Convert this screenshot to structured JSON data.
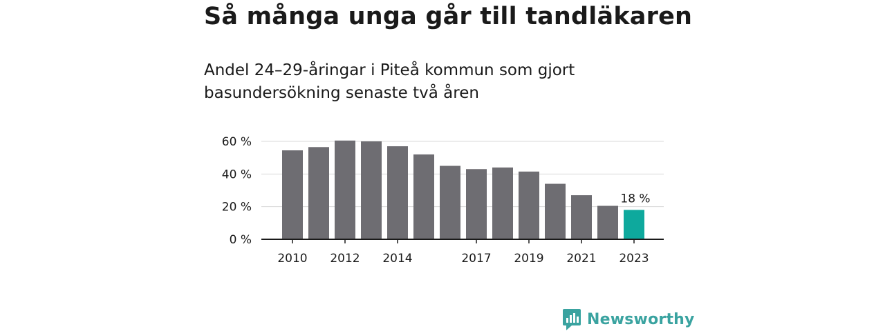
{
  "title": "Så många unga går till tandläkaren",
  "subtitle": "Andel 24–29-åringar i Piteå kommun som gjort basundersökning senaste två åren",
  "chart_data": {
    "type": "bar",
    "categories": [
      "2010",
      "2011",
      "2012",
      "2013",
      "2014",
      "2015",
      "2016",
      "2017",
      "2018",
      "2019",
      "2020",
      "2021",
      "2022",
      "2023"
    ],
    "x_tick_labels": [
      "2010",
      "",
      "2012",
      "",
      "2014",
      "",
      "",
      "2017",
      "",
      "2019",
      "",
      "2021",
      "",
      "2023"
    ],
    "values": [
      54.5,
      56.5,
      60.5,
      60,
      57,
      52,
      45,
      43,
      44,
      41.5,
      34,
      27,
      20.5,
      18
    ],
    "ylim": [
      0,
      60
    ],
    "y_ticks": [
      0,
      20,
      40,
      60
    ],
    "y_tick_labels": [
      "0 %",
      "20 %",
      "40 %",
      "60 %"
    ],
    "grid": true,
    "highlight_index": 13,
    "annotation": "18 %",
    "colors": {
      "bar": "#6e6d72",
      "highlight": "#0ea99d",
      "grid": "#d9d9d9",
      "axis": "#1a1a1a"
    }
  },
  "logo": {
    "text": "Newsworthy",
    "color": "#3aa3a0"
  }
}
